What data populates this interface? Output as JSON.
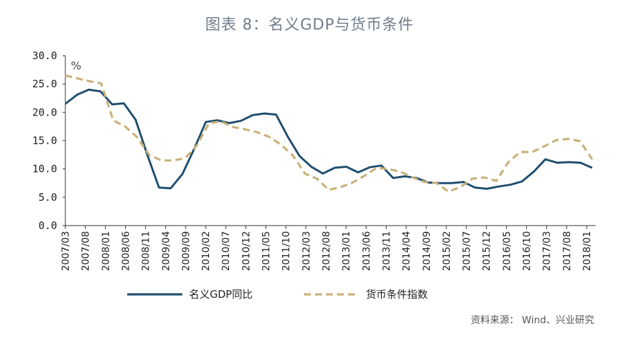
{
  "chart_data": {
    "type": "line",
    "title": "图表 8：名义GDP与货币条件",
    "unit_label": "%",
    "ylim": [
      0,
      30
    ],
    "yticks": [
      "0.0",
      "5.0",
      "10.0",
      "15.0",
      "20.0",
      "25.0",
      "30.0"
    ],
    "x_labels": [
      "2007/03",
      "2007/08",
      "2008/01",
      "2008/06",
      "2008/11",
      "2009/04",
      "2009/09",
      "2010/02",
      "2010/07",
      "2010/12",
      "2011/05",
      "2011/10",
      "2012/03",
      "2012/08",
      "2013/01",
      "2013/06",
      "2013/11",
      "2014/04",
      "2014/09",
      "2015/02",
      "2015/07",
      "2015/12",
      "2016/05",
      "2016/10",
      "2017/03",
      "2017/08",
      "2018/01"
    ],
    "grid": false,
    "legend_position": "bottom",
    "series": [
      {
        "name": "名义GDP同比",
        "color": "#1f4e6e",
        "style": "solid",
        "values": [
          21.5,
          23.1,
          24.0,
          23.7,
          21.4,
          21.6,
          18.7,
          12.5,
          6.7,
          6.6,
          9.1,
          13.5,
          18.3,
          18.6,
          18.1,
          18.5,
          19.5,
          19.8,
          19.6,
          15.7,
          12.3,
          10.4,
          9.2,
          10.2,
          10.4,
          9.4,
          10.3,
          10.6,
          8.4,
          8.7,
          8.4,
          7.6,
          7.5,
          7.5,
          7.7,
          6.7,
          6.5,
          6.9,
          7.2,
          7.8,
          9.5,
          11.7,
          11.1,
          11.2,
          11.1,
          10.2
        ]
      },
      {
        "name": "货币条件指数",
        "color": "#c8b27a",
        "style": "dashed",
        "values": [
          26.5,
          26.0,
          25.5,
          25.1,
          18.6,
          17.5,
          15.6,
          12.5,
          11.5,
          11.5,
          11.9,
          14.2,
          18.1,
          18.4,
          17.4,
          17.0,
          16.5,
          15.7,
          14.3,
          12.4,
          9.2,
          8.3,
          6.3,
          6.8,
          7.6,
          8.8,
          10.2,
          10.0,
          9.5,
          8.5,
          7.7,
          7.5,
          6.0,
          6.8,
          8.3,
          8.5,
          7.9,
          11.2,
          13.0,
          13.0,
          14.0,
          15.1,
          15.3,
          14.9,
          11.7
        ]
      }
    ]
  },
  "footer": {
    "source": "资料来源： Wind、兴业研究"
  }
}
